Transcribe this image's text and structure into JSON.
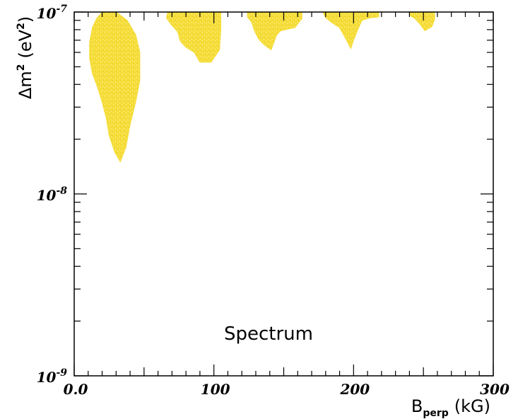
{
  "chart_data": {
    "type": "area",
    "title": "",
    "annotation": "Spectrum",
    "xlabel": {
      "main": "B",
      "sub": "perp",
      "unit": "(kG)"
    },
    "ylabel": {
      "main": "Δm",
      "exp": "2",
      "unit_open": "(eV",
      "unit_exp": "2",
      "unit_close": ")"
    },
    "xlim": [
      0,
      300
    ],
    "ylim": [
      1e-09,
      1e-07
    ],
    "yscale": "log",
    "grid": false,
    "x_ticks": [
      {
        "value": 0,
        "label": "0.0"
      },
      {
        "value": 100,
        "label": "100"
      },
      {
        "value": 200,
        "label": "200"
      },
      {
        "value": 300,
        "label": "300"
      }
    ],
    "y_ticks": [
      {
        "value": 1e-09,
        "base": "10",
        "exp": "-9"
      },
      {
        "value": 1e-08,
        "base": "10",
        "exp": "-8"
      },
      {
        "value": 1e-07,
        "base": "10",
        "exp": "-7"
      }
    ],
    "fill_color": "#f5dd3a",
    "regions": [
      {
        "name": "region-1",
        "points": [
          [
            20,
            1e-07
          ],
          [
            30,
            1e-07
          ],
          [
            38,
            9e-08
          ],
          [
            44,
            7.5e-08
          ],
          [
            47,
            6e-08
          ],
          [
            47,
            4.2e-08
          ],
          [
            44,
            3.2e-08
          ],
          [
            40,
            2.4e-08
          ],
          [
            37,
            1.8e-08
          ],
          [
            33,
            1.5e-08
          ],
          [
            29,
            1.7e-08
          ],
          [
            25,
            2.1e-08
          ],
          [
            23,
            2.6e-08
          ],
          [
            20,
            3.2e-08
          ],
          [
            17,
            3.8e-08
          ],
          [
            13,
            4.6e-08
          ],
          [
            11,
            5.6e-08
          ],
          [
            11,
            6.8e-08
          ],
          [
            13,
            8.2e-08
          ],
          [
            16,
            9.2e-08
          ]
        ]
      },
      {
        "name": "region-2",
        "points": [
          [
            67,
            1e-07
          ],
          [
            105,
            1e-07
          ],
          [
            105,
            8e-08
          ],
          [
            104,
            6.2e-08
          ],
          [
            98,
            5.3e-08
          ],
          [
            90,
            5.3e-08
          ],
          [
            86,
            6e-08
          ],
          [
            80,
            6.4e-08
          ],
          [
            76,
            6.9e-08
          ],
          [
            74,
            7.8e-08
          ],
          [
            69,
            8.6e-08
          ],
          [
            66,
            9.3e-08
          ]
        ]
      },
      {
        "name": "region-3",
        "points": [
          [
            124,
            1e-07
          ],
          [
            163,
            1e-07
          ],
          [
            163,
            9.2e-08
          ],
          [
            158,
            8.2e-08
          ],
          [
            148,
            7.9e-08
          ],
          [
            145,
            7.5e-08
          ],
          [
            141,
            6.2e-08
          ],
          [
            136,
            6.6e-08
          ],
          [
            132,
            7.1e-08
          ],
          [
            129,
            7.9e-08
          ],
          [
            127,
            8.8e-08
          ],
          [
            124,
            9.4e-08
          ]
        ]
      },
      {
        "name": "region-4",
        "points": [
          [
            178,
            1e-07
          ],
          [
            218,
            1e-07
          ],
          [
            218,
            9.4e-08
          ],
          [
            212,
            9.3e-08
          ],
          [
            206,
            9e-08
          ],
          [
            203,
            8e-08
          ],
          [
            200,
            7e-08
          ],
          [
            198,
            6.3e-08
          ],
          [
            195,
            7e-08
          ],
          [
            190,
            8.2e-08
          ],
          [
            184,
            8.8e-08
          ],
          [
            180,
            9.3e-08
          ]
        ]
      },
      {
        "name": "region-5",
        "points": [
          [
            240,
            1e-07
          ],
          [
            258,
            1e-07
          ],
          [
            258,
            9.1e-08
          ],
          [
            256,
            8.3e-08
          ],
          [
            251,
            7.9e-08
          ],
          [
            248,
            8.5e-08
          ],
          [
            244,
            9.2e-08
          ],
          [
            240,
            9.6e-08
          ]
        ]
      }
    ]
  }
}
